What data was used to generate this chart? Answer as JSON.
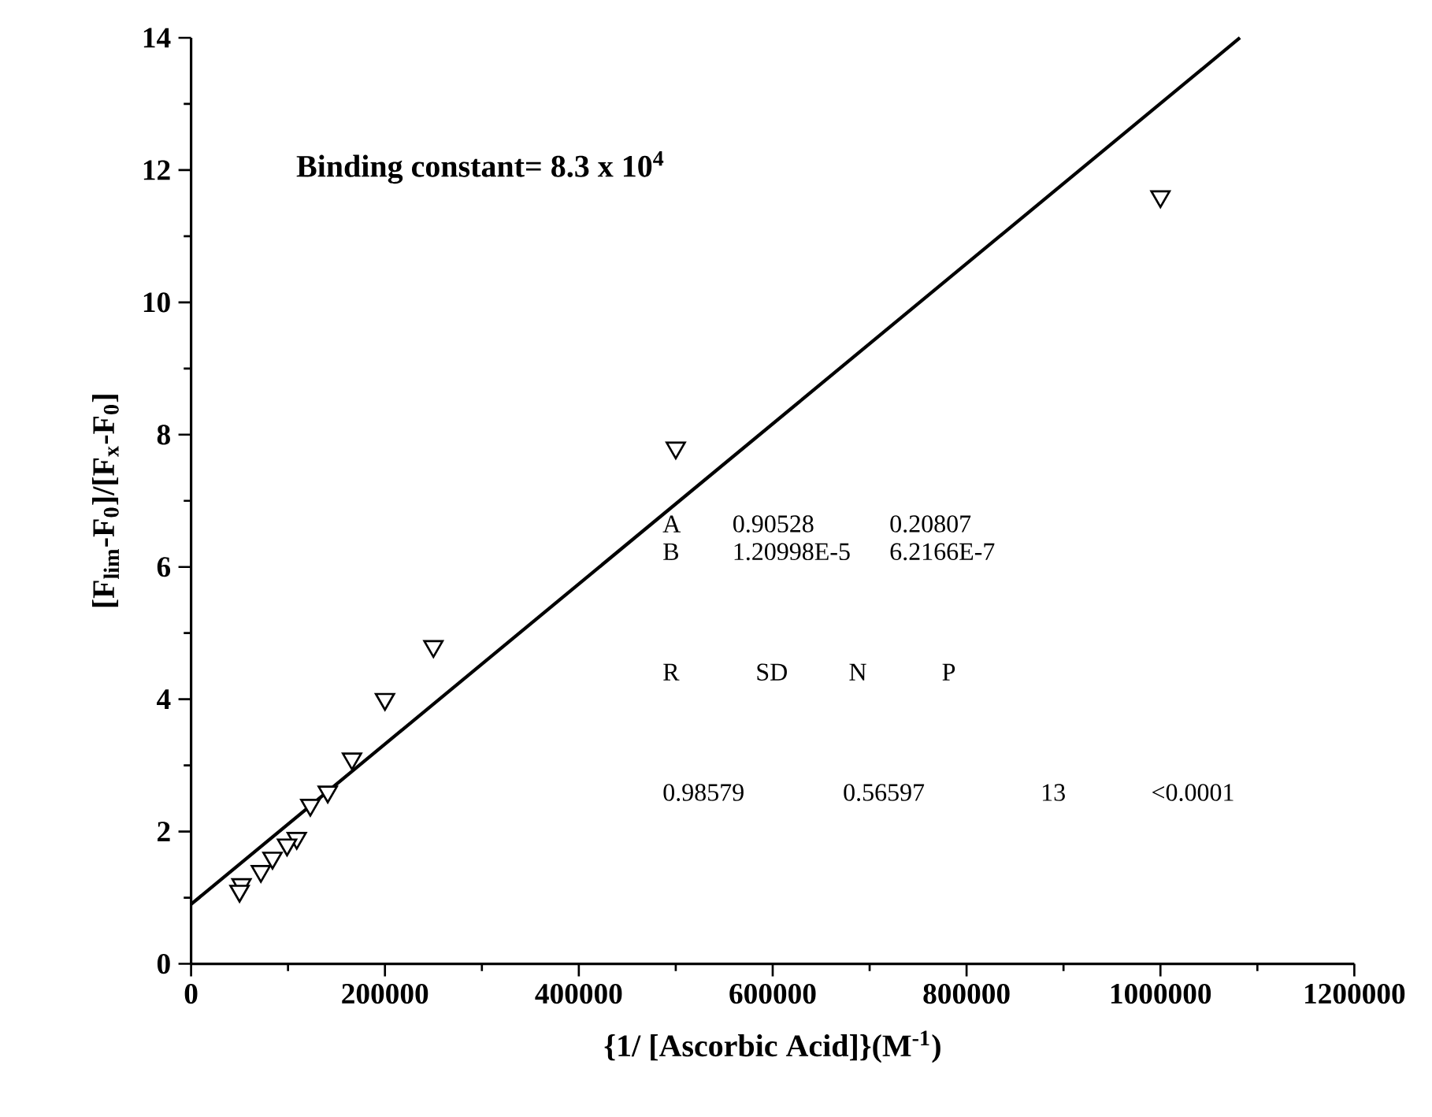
{
  "chart_data": {
    "type": "scatter",
    "xlabel": "{1/ [Ascorbic Acid]}(M$^{-1}$)",
    "ylabel": "[F$_{lim}$-F$_{0}$]/[F$_{x}$-F$_{0}$]",
    "xlim": [
      0,
      1200000
    ],
    "ylim": [
      0,
      14
    ],
    "xticks": [
      0,
      200000,
      400000,
      600000,
      800000,
      1000000,
      1200000
    ],
    "yticks": [
      0,
      2,
      4,
      6,
      8,
      10,
      12,
      14
    ],
    "grid": false,
    "marker": "triangle",
    "series": [
      {
        "color": "#000000",
        "x": [
          1000000,
          500000,
          250000,
          200000,
          166000,
          141000,
          123000,
          109000,
          99000,
          84000,
          72000,
          52000,
          50000
        ],
        "values": [
          11.6,
          7.8,
          4.8,
          4.0,
          3.1,
          2.6,
          2.4,
          1.9,
          1.8,
          1.6,
          1.4,
          1.2,
          1.1
        ]
      },
      {
        "type": "line",
        "color": "#000000",
        "marker": "none",
        "line_style": "solid",
        "x": [
          0,
          1082000
        ],
        "values": [
          0.9,
          14.0
        ]
      }
    ],
    "annotations": [
      "**Binding constant= 8.3 x 10$^{4}$**",
      "A",
      "0.90528",
      "0.20807",
      "B",
      "1.20998E-5",
      "6.2166E-7",
      "R",
      "SD",
      "N",
      "P",
      "0.98579",
      "0.56597",
      "13",
      "<0.0001"
    ]
  }
}
